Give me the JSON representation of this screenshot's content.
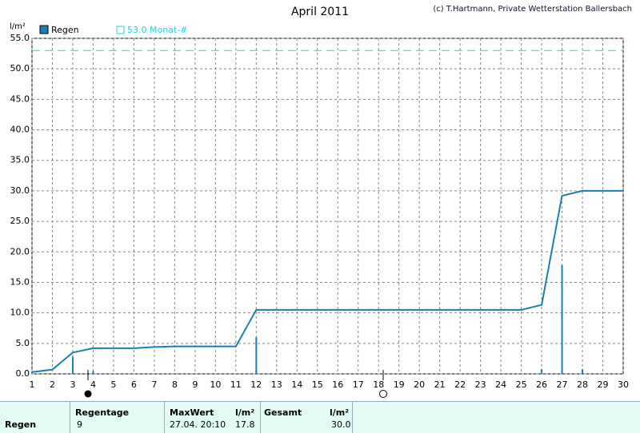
{
  "chart_data": {
    "type": "line",
    "title": "April 2011",
    "credit": "(c) T.Hartmann, Private Wetterstation Ballersbach",
    "y_label": "l/m²",
    "x": [
      1,
      2,
      3,
      4,
      5,
      6,
      7,
      8,
      9,
      10,
      11,
      12,
      13,
      14,
      15,
      16,
      17,
      18,
      19,
      20,
      21,
      22,
      23,
      24,
      25,
      26,
      27,
      28,
      29,
      30
    ],
    "series": [
      {
        "name": "Regen",
        "color": "#1a7fb4",
        "values": [
          0.3,
          0.7,
          3.5,
          4.2,
          4.2,
          4.2,
          4.4,
          4.5,
          4.5,
          4.5,
          4.5,
          10.5,
          10.5,
          10.5,
          10.5,
          10.5,
          10.5,
          10.5,
          10.5,
          10.5,
          10.5,
          10.5,
          10.5,
          10.5,
          10.5,
          11.3,
          29.2,
          30.0,
          30.0,
          30.0
        ]
      }
    ],
    "bars": {
      "color": "#1a7fb4",
      "x": [
        3,
        4,
        12,
        26,
        27,
        28
      ],
      "values": [
        2.8,
        0.5,
        6.0,
        0.8,
        17.8,
        0.8
      ]
    },
    "reference": {
      "value": 53.0,
      "label": "53.0 Monat-#",
      "color": "#22d0e8"
    },
    "xlim": [
      1,
      30
    ],
    "xticks": [
      1,
      2,
      3,
      4,
      5,
      6,
      7,
      8,
      9,
      10,
      11,
      12,
      13,
      14,
      15,
      16,
      17,
      18,
      19,
      20,
      21,
      22,
      23,
      24,
      25,
      26,
      27,
      28,
      29,
      30
    ],
    "ylim": [
      0,
      55
    ],
    "yticks": [
      {
        "value": 0,
        "label": "0.0"
      },
      {
        "value": 5,
        "label": "5.0"
      },
      {
        "value": 10,
        "label": "10.0"
      },
      {
        "value": 15,
        "label": "15.0"
      },
      {
        "value": 20,
        "label": "20.0"
      },
      {
        "value": 25,
        "label": "25.0"
      },
      {
        "value": 30,
        "label": "30.0"
      },
      {
        "value": 35,
        "label": "35.0"
      },
      {
        "value": 40,
        "label": "40.0"
      },
      {
        "value": 45,
        "label": "45.0"
      },
      {
        "value": 50,
        "label": "50.0"
      },
      {
        "value": 55,
        "label": "55.0"
      }
    ],
    "grid": true
  },
  "table": {
    "row_label": "Regen",
    "days_label": "Regentage",
    "days": "9",
    "max_label": "MaxWert",
    "max_time": "27.04.  20:10",
    "max_unit": "l/m²",
    "max_value": "17.8",
    "total_label": "Gesamt",
    "total_unit": "l/m²",
    "total_value": "30.0"
  }
}
